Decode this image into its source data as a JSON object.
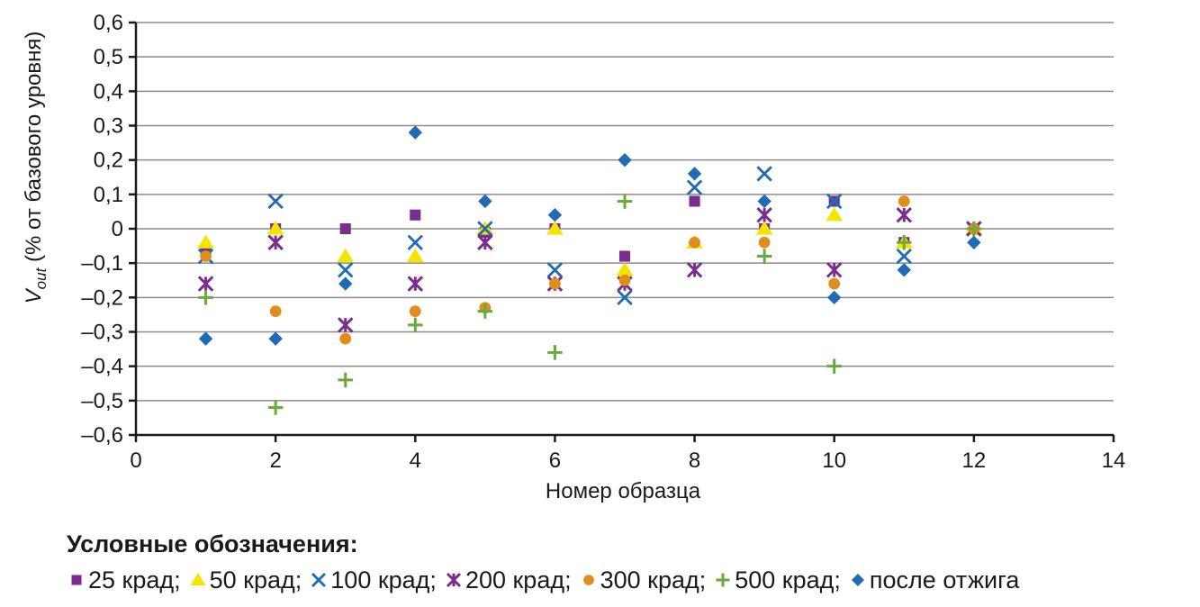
{
  "chart_data": {
    "type": "scatter",
    "xlabel": "Номер образца",
    "ylabel_main": "V",
    "ylabel_sub": "out",
    "ylabel_rest": " (% от базового уровня)",
    "xlim": [
      0,
      14
    ],
    "ylim": [
      -0.6,
      0.6
    ],
    "x_ticks": [
      0,
      2,
      4,
      6,
      8,
      10,
      12,
      14
    ],
    "x_tick_labels": [
      "0",
      "2",
      "4",
      "6",
      "8",
      "10",
      "12",
      "14"
    ],
    "y_ticks": [
      -0.6,
      -0.5,
      -0.4,
      -0.3,
      -0.2,
      -0.1,
      0,
      0.1,
      0.2,
      0.3,
      0.4,
      0.5,
      0.6
    ],
    "y_tick_labels": [
      "–0,6",
      "–0,5",
      "–0,4",
      "–0,3",
      "–0,2",
      "–0,1",
      "0",
      "0,1",
      "0,2",
      "0,3",
      "0,4",
      "0,5",
      "0,6"
    ],
    "grid": "horizontal",
    "legend_title": "Условные обозначения:",
    "series": [
      {
        "name": "25 крад;",
        "marker": "square",
        "color": "#7b2d8e",
        "x": [
          1,
          2,
          3,
          4,
          5,
          6,
          7,
          8,
          9,
          10,
          11,
          12
        ],
        "y": [
          -0.07,
          0.0,
          0.0,
          0.04,
          -0.01,
          0.0,
          -0.08,
          0.08,
          0.0,
          0.08,
          -0.04,
          0.0
        ]
      },
      {
        "name": "50 крад;",
        "marker": "triangle",
        "color": "#f5e400",
        "x": [
          1,
          2,
          3,
          4,
          5,
          6,
          7,
          8,
          9,
          10,
          11,
          12
        ],
        "y": [
          -0.04,
          0.0,
          -0.08,
          -0.08,
          0.0,
          0.0,
          -0.12,
          -0.04,
          0.0,
          0.04,
          -0.04,
          0.0
        ]
      },
      {
        "name": "100 крад;",
        "marker": "x",
        "color": "#1f6cb4",
        "x": [
          1,
          2,
          3,
          4,
          5,
          6,
          7,
          8,
          9,
          10,
          11,
          12
        ],
        "y": [
          -0.08,
          0.08,
          -0.12,
          -0.04,
          0.0,
          -0.12,
          -0.2,
          0.12,
          0.16,
          0.08,
          -0.08,
          0.0
        ]
      },
      {
        "name": "200 крад;",
        "marker": "star",
        "color": "#7b2d8e",
        "x": [
          1,
          2,
          3,
          4,
          5,
          6,
          7,
          8,
          9,
          10,
          11,
          12
        ],
        "y": [
          -0.16,
          -0.04,
          -0.28,
          -0.16,
          -0.04,
          -0.16,
          -0.16,
          -0.12,
          0.04,
          -0.12,
          0.04,
          0.0
        ]
      },
      {
        "name": "300 крад;",
        "marker": "circle",
        "color": "#e08d1e",
        "x": [
          1,
          2,
          3,
          4,
          5,
          6,
          7,
          8,
          9,
          10,
          11,
          12
        ],
        "y": [
          -0.08,
          -0.24,
          -0.32,
          -0.24,
          -0.23,
          -0.16,
          -0.15,
          -0.04,
          -0.04,
          -0.16,
          0.08,
          0.0
        ]
      },
      {
        "name": "500 крад;",
        "marker": "plus",
        "color": "#6aaa3a",
        "x": [
          1,
          2,
          3,
          4,
          5,
          6,
          7,
          9,
          10,
          11,
          12
        ],
        "y": [
          -0.2,
          -0.52,
          -0.44,
          -0.28,
          -0.24,
          -0.36,
          0.08,
          -0.08,
          -0.4,
          -0.04,
          0.0
        ]
      },
      {
        "name": "после отжига",
        "marker": "diamond",
        "color": "#1f6cb4",
        "x": [
          1,
          2,
          3,
          4,
          5,
          6,
          7,
          8,
          9,
          10,
          11,
          12
        ],
        "y": [
          -0.32,
          -0.32,
          -0.16,
          0.28,
          0.08,
          0.04,
          0.2,
          0.16,
          0.08,
          -0.2,
          -0.12,
          -0.04
        ]
      }
    ]
  }
}
